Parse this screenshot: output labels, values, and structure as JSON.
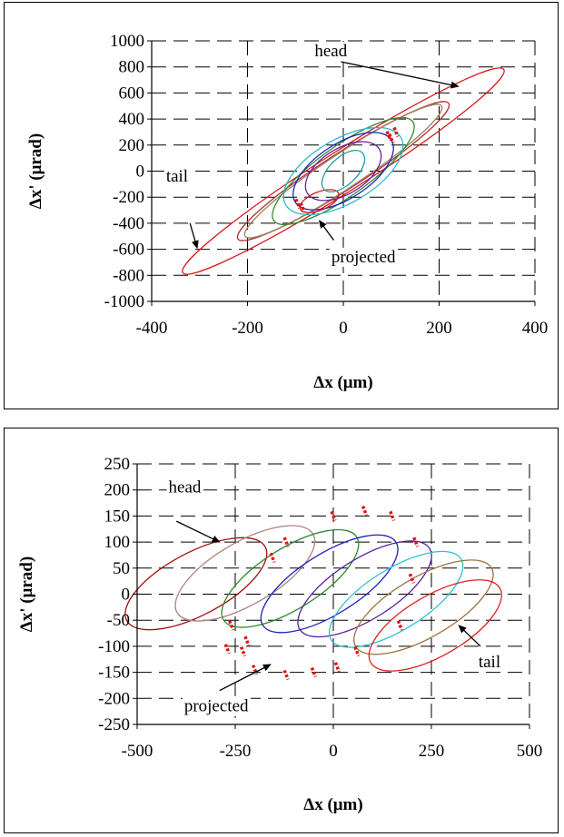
{
  "chart_data": [
    {
      "type": "line",
      "title": "",
      "xlabel": "Δx (μm)",
      "ylabel": "Δx' (μrad)",
      "xlim": [
        -400,
        400
      ],
      "ylim": [
        -1000,
        1000
      ],
      "xticks": [
        "-400",
        "-200",
        "0",
        "200",
        "400"
      ],
      "yticks": [
        "1000",
        "800",
        "600",
        "400",
        "200",
        "0",
        "-200",
        "-400",
        "-600",
        "-800",
        "-1000"
      ],
      "grid": "dashed",
      "annotations": [
        {
          "text": "head",
          "x": -60,
          "y": 880,
          "arrow_from": [
            -5,
            840
          ],
          "arrow_to": [
            240,
            650
          ]
        },
        {
          "text": "tail",
          "x": -370,
          "y": -80,
          "arrow_from": [
            -320,
            -400
          ],
          "arrow_to": [
            -305,
            -590
          ]
        },
        {
          "text": "projected",
          "x": -25,
          "y": -700,
          "arrow_from": [
            -20,
            -530
          ],
          "arrow_to": [
            -50,
            -380
          ]
        }
      ],
      "series": [
        {
          "color": "#d81818",
          "center": [
            0,
            0
          ],
          "a": [
            335,
            780
          ],
          "b": 45
        },
        {
          "color": "#b03030",
          "center": [
            0,
            0
          ],
          "a": [
            220,
            520
          ],
          "b": 40
        },
        {
          "color": "#a08060",
          "center": [
            0,
            0
          ],
          "a": [
            205,
            500
          ],
          "b": 38
        },
        {
          "color": "#2e8b2e",
          "center": [
            0,
            0
          ],
          "a": [
            145,
            380
          ],
          "b": 55
        },
        {
          "color": "#30b8c8",
          "center": [
            0,
            0
          ],
          "a": [
            120,
            260
          ],
          "b": 70
        },
        {
          "color": "#2020c0",
          "center": [
            0,
            0
          ],
          "a": [
            100,
            240
          ],
          "b": 60
        },
        {
          "color": "#7020a0",
          "center": [
            0,
            0
          ],
          "a": [
            75,
            170
          ],
          "b": 50
        },
        {
          "color": "#d81818",
          "center": [
            -50,
            -230
          ],
          "a": [
            40,
            60
          ],
          "b": 20
        },
        {
          "color": "#20a0a0",
          "center": [
            0,
            0
          ],
          "a": [
            40,
            140
          ],
          "b": 30
        }
      ],
      "projected_points": [
        [
          -95,
          -250
        ],
        [
          -85,
          -280
        ],
        [
          95,
          270
        ],
        [
          110,
          300
        ],
        [
          100,
          250
        ]
      ]
    },
    {
      "type": "line",
      "title": "",
      "xlabel": "Δx (μm)",
      "ylabel": "Δx' (μrad)",
      "xlim": [
        -500,
        500
      ],
      "ylim": [
        -250,
        250
      ],
      "xticks": [
        "-500",
        "-250",
        "0",
        "250",
        "500"
      ],
      "yticks": [
        "250",
        "200",
        "150",
        "100",
        "50",
        "0",
        "-50",
        "-100",
        "-150",
        "-200",
        "-250"
      ],
      "grid": "dashed",
      "annotations": [
        {
          "text": "head",
          "x": -420,
          "y": 195,
          "arrow_from": [
            -400,
            140
          ],
          "arrow_to": [
            -290,
            100
          ]
        },
        {
          "text": "tail",
          "x": 370,
          "y": -140,
          "arrow_from": [
            375,
            -100
          ],
          "arrow_to": [
            320,
            -60
          ]
        },
        {
          "text": "projected",
          "x": -380,
          "y": -225,
          "arrow_from": [
            -290,
            -185
          ],
          "arrow_to": [
            -160,
            -135
          ]
        }
      ],
      "series": [
        {
          "color": "#a01010",
          "center": [
            -350,
            20
          ],
          "rx": 200,
          "ry": 60,
          "angle": 28
        },
        {
          "color": "#b08080",
          "center": [
            -225,
            40
          ],
          "rx": 200,
          "ry": 60,
          "angle": 30
        },
        {
          "color": "#2e8b2e",
          "center": [
            -110,
            30
          ],
          "rx": 200,
          "ry": 58,
          "angle": 32
        },
        {
          "color": "#2020c0",
          "center": [
            -10,
            20
          ],
          "rx": 200,
          "ry": 58,
          "angle": 32
        },
        {
          "color": "#5a1f9a",
          "center": [
            80,
            10
          ],
          "rx": 195,
          "ry": 58,
          "angle": 32
        },
        {
          "color": "#30c0d0",
          "center": [
            160,
            -10
          ],
          "rx": 195,
          "ry": 58,
          "angle": 32
        },
        {
          "color": "#a07040",
          "center": [
            230,
            -25
          ],
          "rx": 200,
          "ry": 58,
          "angle": 30
        },
        {
          "color": "#e02020",
          "center": [
            260,
            -60
          ],
          "rx": 190,
          "ry": 58,
          "angle": 30
        }
      ],
      "projected_points": [
        [
          -230,
          -110
        ],
        [
          -220,
          -90
        ],
        [
          -155,
          70
        ],
        [
          -120,
          100
        ],
        [
          0,
          150
        ],
        [
          80,
          160
        ],
        [
          150,
          150
        ],
        [
          210,
          100
        ],
        [
          200,
          30
        ],
        [
          170,
          -60
        ],
        [
          60,
          -110
        ],
        [
          10,
          -140
        ],
        [
          -50,
          -150
        ],
        [
          -120,
          -155
        ],
        [
          -200,
          -145
        ],
        [
          -270,
          -105
        ],
        [
          -260,
          -60
        ]
      ]
    }
  ]
}
